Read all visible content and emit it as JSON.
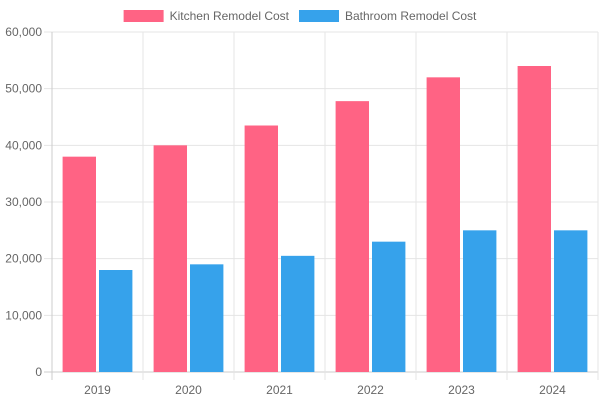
{
  "chart_data": {
    "type": "bar",
    "title": "",
    "xlabel": "",
    "ylabel": "",
    "categories": [
      "2019",
      "2020",
      "2021",
      "2022",
      "2023",
      "2024"
    ],
    "series": [
      {
        "name": "Kitchen Remodel Cost",
        "color": "#ff6384",
        "values": [
          38000,
          40000,
          43500,
          47800,
          52000,
          54000
        ]
      },
      {
        "name": "Bathroom Remodel Cost",
        "color": "#36a2eb",
        "values": [
          18000,
          19000,
          20500,
          23000,
          25000,
          25000
        ]
      }
    ],
    "ylim": [
      0,
      60000
    ],
    "y_ticks": [
      "0",
      "10,000",
      "20,000",
      "30,000",
      "40,000",
      "50,000",
      "60,000"
    ],
    "grid": true,
    "legend_position": "top"
  }
}
